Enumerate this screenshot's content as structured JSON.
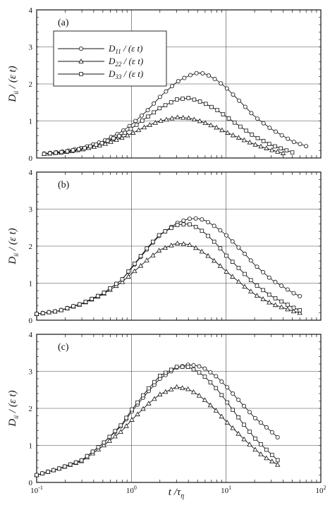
{
  "figure": {
    "xlabel": "t /τ",
    "xlabel_sub": "η"
  },
  "chart_data": [
    {
      "type": "line",
      "panel_label": "(a)",
      "xscale": "log",
      "xlim": [
        0.1,
        100
      ],
      "ylim": [
        0,
        4
      ],
      "ylabel": "D",
      "ylabel_sub": "ii",
      "ylabel_rest": " / (ε t)",
      "xticks": [
        "10^-1",
        "10^0",
        "10^1",
        "10^2"
      ],
      "yticks": [
        "0",
        "1",
        "2",
        "3",
        "4"
      ],
      "grid": true,
      "legend": {
        "position": "top-left",
        "entries": [
          {
            "series": "D11",
            "main": "D",
            "sub": "11",
            "rest": " / (ε t)",
            "marker": "circle"
          },
          {
            "series": "D22",
            "main": "D",
            "sub": "22",
            "rest": " / (ε t)",
            "marker": "triangle"
          },
          {
            "series": "D33",
            "main": "D",
            "sub": "33",
            "rest": " / (ε t)",
            "marker": "square"
          }
        ]
      },
      "series": [
        {
          "name": "D11",
          "marker": "circle",
          "x": [
            0.12,
            0.2,
            0.3,
            0.5,
            0.8,
            1,
            1.5,
            2,
            3,
            4,
            5,
            6,
            8,
            10,
            15,
            20,
            30,
            50,
            70
          ],
          "values": [
            0.12,
            0.18,
            0.27,
            0.45,
            0.72,
            0.9,
            1.3,
            1.65,
            2.05,
            2.22,
            2.3,
            2.28,
            2.1,
            1.9,
            1.45,
            1.12,
            0.78,
            0.45,
            0.32
          ]
        },
        {
          "name": "D22",
          "marker": "triangle",
          "x": [
            0.12,
            0.2,
            0.3,
            0.5,
            0.8,
            1,
            1.5,
            2,
            3,
            4,
            5,
            6,
            8,
            10,
            15,
            20,
            30,
            40
          ],
          "values": [
            0.11,
            0.16,
            0.23,
            0.36,
            0.55,
            0.66,
            0.88,
            1.0,
            1.1,
            1.08,
            1.02,
            0.95,
            0.82,
            0.7,
            0.5,
            0.37,
            0.22,
            0.13
          ]
        },
        {
          "name": "D33",
          "marker": "square",
          "x": [
            0.12,
            0.2,
            0.3,
            0.5,
            0.8,
            1,
            1.5,
            2,
            3,
            4,
            5,
            6,
            8,
            10,
            15,
            20,
            30,
            50
          ],
          "values": [
            0.11,
            0.17,
            0.25,
            0.41,
            0.63,
            0.8,
            1.12,
            1.35,
            1.58,
            1.62,
            1.55,
            1.47,
            1.3,
            1.12,
            0.8,
            0.58,
            0.35,
            0.15
          ]
        }
      ]
    },
    {
      "type": "line",
      "panel_label": "(b)",
      "xscale": "log",
      "xlim": [
        0.1,
        100
      ],
      "ylim": [
        0,
        4
      ],
      "ylabel": "D",
      "ylabel_sub": "ii",
      "ylabel_rest": " / (ε t)",
      "yticks": [
        "0",
        "1",
        "2",
        "3",
        "4"
      ],
      "grid": true,
      "series": [
        {
          "name": "D11",
          "marker": "circle",
          "x": [
            0.1,
            0.17,
            0.3,
            0.5,
            0.8,
            1,
            1.5,
            2,
            3,
            4,
            5,
            6,
            8,
            10,
            15,
            20,
            30,
            50,
            60
          ],
          "values": [
            0.17,
            0.25,
            0.45,
            0.72,
            1.1,
            1.4,
            1.95,
            2.3,
            2.62,
            2.74,
            2.75,
            2.7,
            2.5,
            2.3,
            1.85,
            1.5,
            1.1,
            0.75,
            0.65
          ]
        },
        {
          "name": "D22",
          "marker": "triangle",
          "x": [
            0.1,
            0.17,
            0.3,
            0.5,
            0.8,
            1,
            1.5,
            2,
            3,
            4,
            5,
            6,
            8,
            10,
            15,
            20,
            30,
            50,
            60
          ],
          "values": [
            0.17,
            0.25,
            0.44,
            0.7,
            1.03,
            1.25,
            1.65,
            1.9,
            2.08,
            2.05,
            1.93,
            1.8,
            1.55,
            1.32,
            0.95,
            0.7,
            0.45,
            0.25,
            0.2
          ]
        },
        {
          "name": "D33",
          "marker": "square",
          "x": [
            0.1,
            0.17,
            0.3,
            0.5,
            0.8,
            1,
            1.5,
            2,
            3,
            4,
            5,
            6,
            8,
            10,
            15,
            20,
            30,
            50,
            60
          ],
          "values": [
            0.17,
            0.25,
            0.45,
            0.72,
            1.1,
            1.42,
            1.98,
            2.32,
            2.57,
            2.6,
            2.5,
            2.35,
            2.05,
            1.75,
            1.3,
            0.98,
            0.65,
            0.35,
            0.27
          ]
        }
      ]
    },
    {
      "type": "line",
      "panel_label": "(c)",
      "xscale": "log",
      "xlim": [
        0.1,
        100
      ],
      "ylim": [
        0,
        4
      ],
      "ylabel": "D",
      "ylabel_sub": "ii",
      "ylabel_rest": " / (ε t)",
      "xticks": [
        "10^-1",
        "10^0",
        "10^1",
        "10^2"
      ],
      "yticks": [
        "0",
        "1",
        "2",
        "3",
        "4"
      ],
      "grid": true,
      "series": [
        {
          "name": "D11",
          "marker": "circle",
          "x": [
            0.1,
            0.17,
            0.3,
            0.5,
            0.8,
            1,
            1.5,
            2,
            3,
            4,
            5,
            6,
            8,
            10,
            15,
            20,
            25,
            35
          ],
          "values": [
            0.2,
            0.37,
            0.6,
            1.05,
            1.55,
            1.9,
            2.45,
            2.8,
            3.1,
            3.18,
            3.15,
            3.07,
            2.85,
            2.6,
            2.1,
            1.75,
            1.55,
            1.22
          ]
        },
        {
          "name": "D22",
          "marker": "triangle",
          "x": [
            0.1,
            0.17,
            0.3,
            0.5,
            0.8,
            1,
            1.5,
            2,
            3,
            4,
            5,
            6,
            8,
            10,
            15,
            20,
            25,
            35
          ],
          "values": [
            0.2,
            0.37,
            0.58,
            0.98,
            1.4,
            1.68,
            2.12,
            2.38,
            2.58,
            2.52,
            2.38,
            2.22,
            1.92,
            1.65,
            1.2,
            0.9,
            0.7,
            0.48
          ]
        },
        {
          "name": "D33",
          "marker": "square",
          "x": [
            0.1,
            0.17,
            0.3,
            0.5,
            0.8,
            1,
            1.5,
            2,
            3,
            4,
            5,
            6,
            8,
            10,
            15,
            20,
            25,
            35
          ],
          "values": [
            0.2,
            0.37,
            0.6,
            1.05,
            1.58,
            1.95,
            2.52,
            2.88,
            3.12,
            3.12,
            3.0,
            2.85,
            2.52,
            2.2,
            1.6,
            1.2,
            0.95,
            0.6
          ]
        }
      ]
    }
  ]
}
